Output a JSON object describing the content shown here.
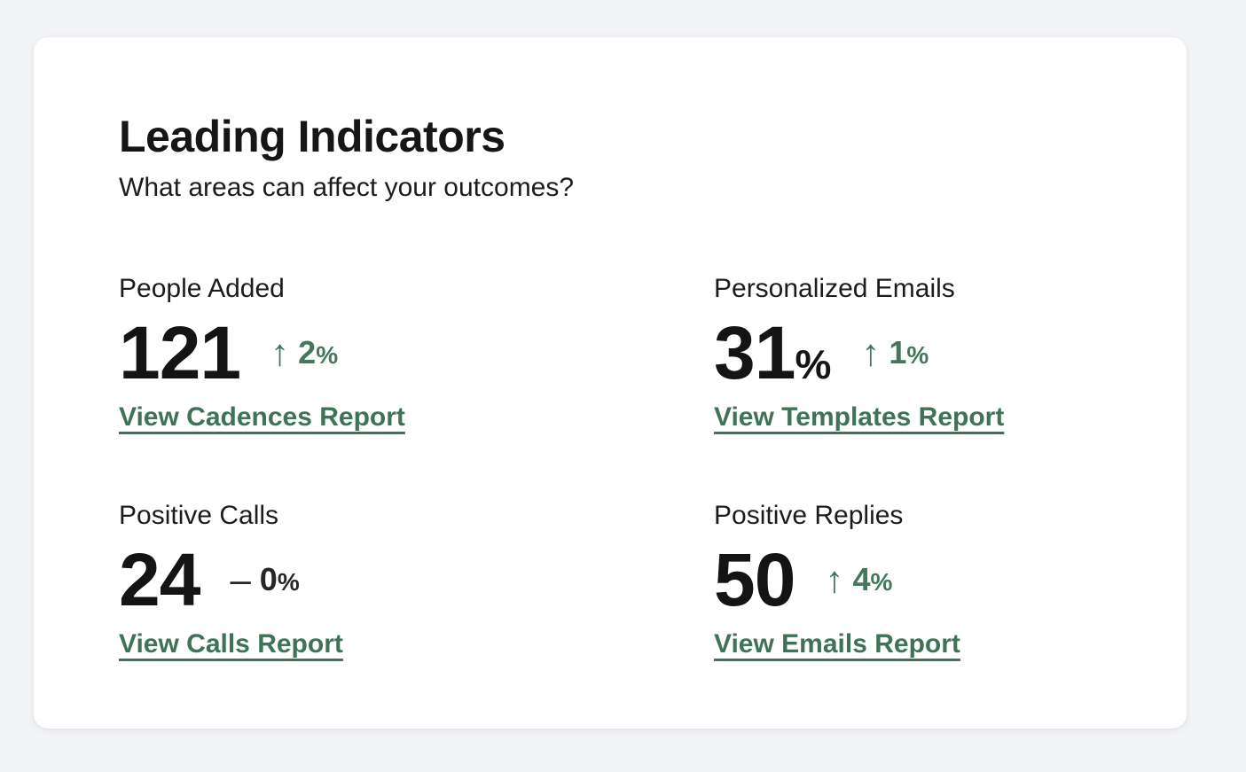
{
  "colors": {
    "page_background": "#f3f4f7",
    "card_background": "#ffffff",
    "accent_green": "#3E7358",
    "delta_up_green": "#43785E",
    "delta_neutral_dark": "#262626",
    "text_primary": "#161616"
  },
  "card": {
    "title": "Leading Indicators",
    "subtitle": "What areas can affect your outcomes?"
  },
  "icons": {
    "up_arrow": "↑",
    "dash": "–"
  },
  "metrics": [
    {
      "label": "People Added",
      "value": "121",
      "value_suffix": "",
      "delta_direction": "up",
      "delta_number": "2",
      "delta_unit": "%",
      "link_label": "View Cadences Report"
    },
    {
      "label": "Personalized Emails",
      "value": "31",
      "value_suffix": "%",
      "delta_direction": "up",
      "delta_number": "1",
      "delta_unit": "%",
      "link_label": "View Templates Report"
    },
    {
      "label": "Positive Calls",
      "value": "24",
      "value_suffix": "",
      "delta_direction": "flat",
      "delta_number": "0",
      "delta_unit": "%",
      "link_label": "View Calls Report"
    },
    {
      "label": "Positive Replies",
      "value": "50",
      "value_suffix": "",
      "delta_direction": "up",
      "delta_number": "4",
      "delta_unit": "%",
      "link_label": "View Emails Report"
    }
  ]
}
